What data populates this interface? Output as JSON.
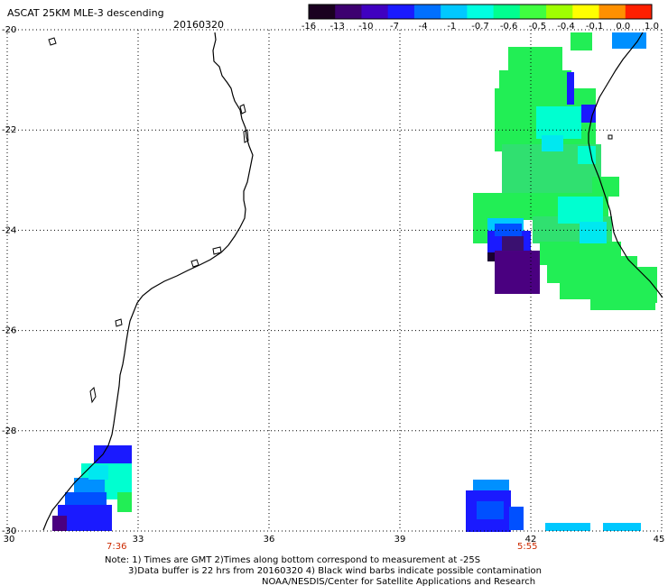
{
  "title": "ASCAT 25KM MLE-3 descending",
  "date": "20160320",
  "colorbar": {
    "ticks": [
      "-16",
      "-13",
      "-10",
      "-7",
      "-4",
      "-1",
      "-0.7",
      "-0.6",
      "-0.5",
      "-0.4",
      "-0.1",
      "0.0",
      "1.0"
    ],
    "colors": [
      "#1a0020",
      "#3d0070",
      "#4000c0",
      "#1a1aff",
      "#0070ff",
      "#00c8ff",
      "#00ffe0",
      "#00ff90",
      "#40ff40",
      "#a0ff00",
      "#ffff00",
      "#ff9000",
      "#ff2000"
    ]
  },
  "axes": {
    "x_ticks": [
      "30",
      "33",
      "36",
      "39",
      "42",
      "45"
    ],
    "y_ticks": [
      "-20",
      "-22",
      "-24",
      "-26",
      "-28",
      "-30"
    ]
  },
  "pass_times": [
    "7:36",
    "5:55"
  ],
  "notes": {
    "line1": "Note: 1) Times are GMT 2)Times along bottom correspond to measurement at -25S",
    "line2": "3)Data buffer is 22 hrs from 20160320 4) Black wind barbs indicate possible contamination",
    "line3": "NOAA/NESDIS/Center for Satellite Applications and Research"
  }
}
